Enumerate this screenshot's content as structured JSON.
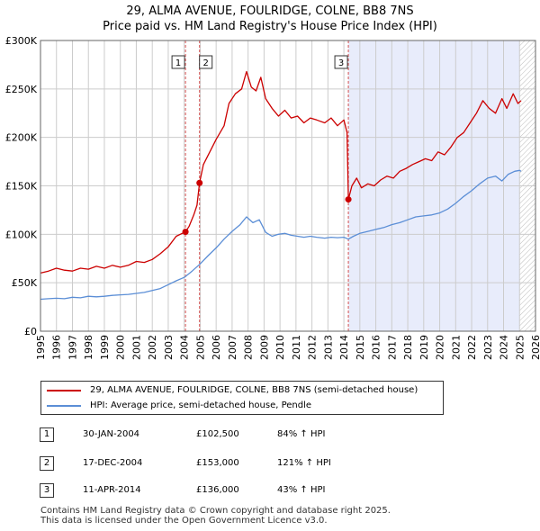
{
  "header": {
    "title": "29, ALMA AVENUE, FOULRIDGE, COLNE, BB8 7NS",
    "subtitle": "Price paid vs. HM Land Registry's House Price Index (HPI)"
  },
  "colors": {
    "red": "#cc0000",
    "blue": "#5b8ed6",
    "shade": "#e8ecfb",
    "grid": "#cccccc",
    "vline": "#d45050"
  },
  "chart_data": {
    "type": "line",
    "title": "29, ALMA AVENUE, FOULRIDGE, COLNE, BB8 7NS",
    "xlim": [
      1995,
      2026
    ],
    "ylim": [
      0,
      300000
    ],
    "x_ticks": [
      1995,
      1996,
      1997,
      1998,
      1999,
      2000,
      2001,
      2002,
      2003,
      2004,
      2005,
      2006,
      2007,
      2008,
      2009,
      2010,
      2011,
      2012,
      2013,
      2014,
      2015,
      2016,
      2017,
      2018,
      2019,
      2020,
      2021,
      2022,
      2023,
      2024,
      2025,
      2026
    ],
    "y_ticks": [
      0,
      50000,
      100000,
      150000,
      200000,
      250000,
      300000
    ],
    "y_tick_labels": [
      "£0",
      "£50K",
      "£100K",
      "£150K",
      "£200K",
      "£250K",
      "£300K"
    ],
    "shaded_range": [
      2014.28,
      2025.0
    ],
    "hatched_range": [
      2025.0,
      2026
    ],
    "series": [
      {
        "name": "29, ALMA AVENUE, FOULRIDGE, COLNE, BB8 7NS (semi-detached house)",
        "color": "#cc0000",
        "points": [
          [
            1995.0,
            60000
          ],
          [
            1995.5,
            62000
          ],
          [
            1996.0,
            65000
          ],
          [
            1996.5,
            63000
          ],
          [
            1997.0,
            62000
          ],
          [
            1997.5,
            65000
          ],
          [
            1998.0,
            64000
          ],
          [
            1998.5,
            67000
          ],
          [
            1999.0,
            65000
          ],
          [
            1999.5,
            68000
          ],
          [
            2000.0,
            66000
          ],
          [
            2000.5,
            68000
          ],
          [
            2001.0,
            72000
          ],
          [
            2001.5,
            71000
          ],
          [
            2002.0,
            74000
          ],
          [
            2002.5,
            80000
          ],
          [
            2003.0,
            87000
          ],
          [
            2003.5,
            98000
          ],
          [
            2004.08,
            102500
          ],
          [
            2004.3,
            108000
          ],
          [
            2004.6,
            120000
          ],
          [
            2004.8,
            130000
          ],
          [
            2004.96,
            153000
          ],
          [
            2005.2,
            172000
          ],
          [
            2005.6,
            185000
          ],
          [
            2006.0,
            198000
          ],
          [
            2006.5,
            212000
          ],
          [
            2006.8,
            235000
          ],
          [
            2007.2,
            245000
          ],
          [
            2007.6,
            250000
          ],
          [
            2007.9,
            268000
          ],
          [
            2008.2,
            252000
          ],
          [
            2008.5,
            248000
          ],
          [
            2008.8,
            262000
          ],
          [
            2009.1,
            240000
          ],
          [
            2009.5,
            230000
          ],
          [
            2009.9,
            222000
          ],
          [
            2010.3,
            228000
          ],
          [
            2010.7,
            220000
          ],
          [
            2011.1,
            222000
          ],
          [
            2011.5,
            215000
          ],
          [
            2011.9,
            220000
          ],
          [
            2012.3,
            218000
          ],
          [
            2012.8,
            215000
          ],
          [
            2013.2,
            220000
          ],
          [
            2013.6,
            212000
          ],
          [
            2014.0,
            218000
          ],
          [
            2014.2,
            205000
          ],
          [
            2014.28,
            136000
          ],
          [
            2014.5,
            150000
          ],
          [
            2014.8,
            158000
          ],
          [
            2015.1,
            148000
          ],
          [
            2015.5,
            152000
          ],
          [
            2015.9,
            150000
          ],
          [
            2016.3,
            156000
          ],
          [
            2016.7,
            160000
          ],
          [
            2017.1,
            158000
          ],
          [
            2017.5,
            165000
          ],
          [
            2017.9,
            168000
          ],
          [
            2018.3,
            172000
          ],
          [
            2018.7,
            175000
          ],
          [
            2019.1,
            178000
          ],
          [
            2019.5,
            176000
          ],
          [
            2019.9,
            185000
          ],
          [
            2020.3,
            182000
          ],
          [
            2020.7,
            190000
          ],
          [
            2021.1,
            200000
          ],
          [
            2021.5,
            205000
          ],
          [
            2021.9,
            215000
          ],
          [
            2022.3,
            225000
          ],
          [
            2022.7,
            238000
          ],
          [
            2023.1,
            230000
          ],
          [
            2023.5,
            225000
          ],
          [
            2023.9,
            240000
          ],
          [
            2024.2,
            230000
          ],
          [
            2024.6,
            245000
          ],
          [
            2024.9,
            235000
          ],
          [
            2025.1,
            238000
          ]
        ]
      },
      {
        "name": "HPI: Average price, semi-detached house, Pendle",
        "color": "#5b8ed6",
        "points": [
          [
            1995.0,
            33000
          ],
          [
            1995.5,
            33500
          ],
          [
            1996.0,
            34000
          ],
          [
            1996.5,
            33500
          ],
          [
            1997.0,
            35000
          ],
          [
            1997.5,
            34500
          ],
          [
            1998.0,
            36000
          ],
          [
            1998.5,
            35500
          ],
          [
            1999.0,
            36000
          ],
          [
            1999.5,
            37000
          ],
          [
            2000.0,
            37500
          ],
          [
            2000.5,
            38000
          ],
          [
            2001.0,
            39000
          ],
          [
            2001.5,
            40000
          ],
          [
            2002.0,
            42000
          ],
          [
            2002.5,
            44000
          ],
          [
            2003.0,
            48000
          ],
          [
            2003.5,
            52000
          ],
          [
            2004.0,
            55500
          ],
          [
            2004.5,
            62000
          ],
          [
            2005.0,
            69500
          ],
          [
            2005.5,
            78000
          ],
          [
            2006.0,
            86000
          ],
          [
            2006.5,
            95000
          ],
          [
            2007.0,
            103000
          ],
          [
            2007.5,
            110000
          ],
          [
            2007.9,
            118000
          ],
          [
            2008.3,
            112000
          ],
          [
            2008.7,
            115000
          ],
          [
            2009.1,
            102000
          ],
          [
            2009.5,
            98000
          ],
          [
            2009.9,
            100000
          ],
          [
            2010.3,
            101000
          ],
          [
            2010.7,
            99000
          ],
          [
            2011.1,
            98000
          ],
          [
            2011.5,
            97000
          ],
          [
            2011.9,
            98000
          ],
          [
            2012.3,
            97000
          ],
          [
            2012.8,
            96000
          ],
          [
            2013.2,
            97000
          ],
          [
            2013.6,
            96500
          ],
          [
            2014.0,
            97000
          ],
          [
            2014.28,
            95000
          ],
          [
            2014.6,
            98000
          ],
          [
            2015.0,
            101000
          ],
          [
            2015.5,
            103000
          ],
          [
            2016.0,
            105000
          ],
          [
            2016.5,
            107000
          ],
          [
            2017.0,
            110000
          ],
          [
            2017.5,
            112000
          ],
          [
            2018.0,
            115000
          ],
          [
            2018.5,
            118000
          ],
          [
            2019.0,
            119000
          ],
          [
            2019.5,
            120000
          ],
          [
            2020.0,
            122000
          ],
          [
            2020.5,
            126000
          ],
          [
            2021.0,
            132000
          ],
          [
            2021.5,
            139000
          ],
          [
            2022.0,
            145000
          ],
          [
            2022.5,
            152000
          ],
          [
            2023.0,
            158000
          ],
          [
            2023.5,
            160000
          ],
          [
            2023.9,
            155000
          ],
          [
            2024.3,
            162000
          ],
          [
            2024.7,
            165000
          ],
          [
            2025.0,
            166000
          ],
          [
            2025.1,
            165000
          ]
        ]
      }
    ],
    "events": [
      {
        "label": "1",
        "x": 2004.08,
        "y": 102500
      },
      {
        "label": "2",
        "x": 2004.96,
        "y": 153000
      },
      {
        "label": "3",
        "x": 2014.28,
        "y": 136000
      }
    ]
  },
  "legend": {
    "items": [
      {
        "label": "29, ALMA AVENUE, FOULRIDGE, COLNE, BB8 7NS (semi-detached house)",
        "color": "#cc0000"
      },
      {
        "label": "HPI: Average price, semi-detached house, Pendle",
        "color": "#5b8ed6"
      }
    ]
  },
  "transactions": [
    {
      "num": "1",
      "date": "30-JAN-2004",
      "price": "£102,500",
      "hpi": "84% ↑ HPI"
    },
    {
      "num": "2",
      "date": "17-DEC-2004",
      "price": "£153,000",
      "hpi": "121% ↑ HPI"
    },
    {
      "num": "3",
      "date": "11-APR-2014",
      "price": "£136,000",
      "hpi": "43% ↑ HPI"
    }
  ],
  "footer": {
    "line1": "Contains HM Land Registry data © Crown copyright and database right 2025.",
    "line2": "This data is licensed under the Open Government Licence v3.0."
  }
}
